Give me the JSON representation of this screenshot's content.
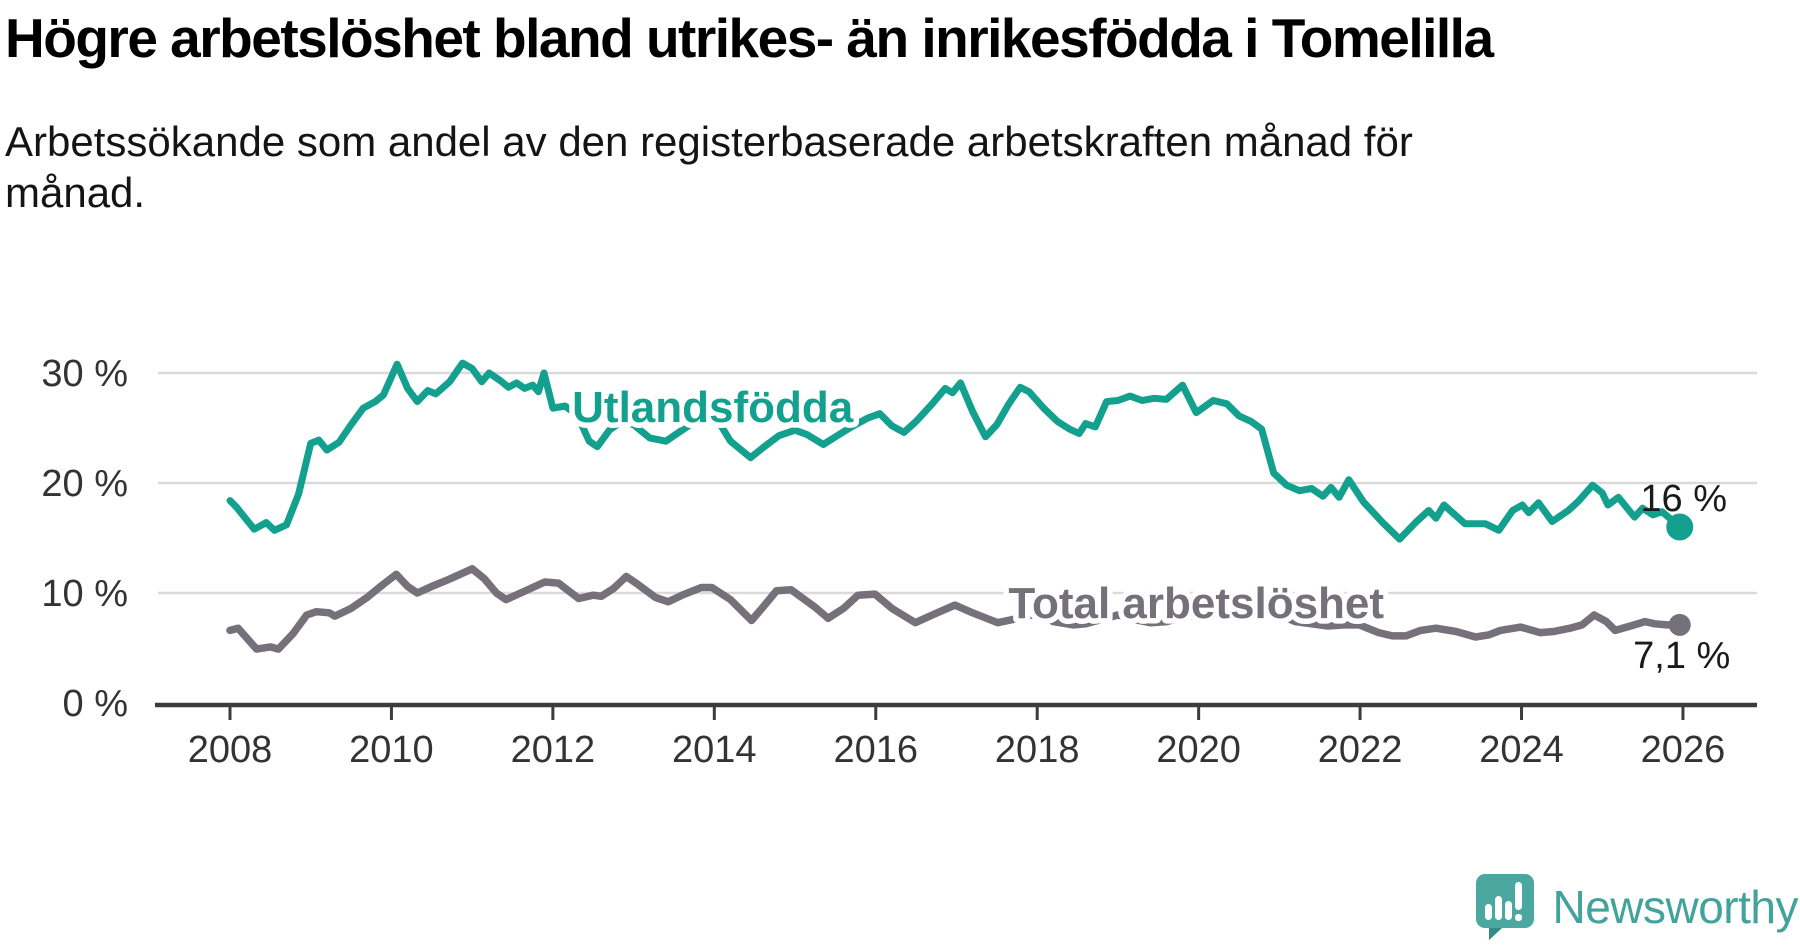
{
  "title": "Högre arbetslöshet bland utrikes- än inrikesfödda i Tomelilla",
  "subtitle": "Arbetssökande som andel av den registerbaserade arbetskraften månad för månad.",
  "branding": {
    "name": "Newsworthy",
    "icon": "speech-bubble-bar-chart-exclamation",
    "color": "#41a39b",
    "icon_color": "#4ba8a0"
  },
  "chart_data": {
    "type": "line",
    "title": "Högre arbetslöshet bland utrikes- än inrikesfödda i Tomelilla",
    "subtitle": "Arbetssökande som andel av den registerbaserade arbetskraften månad för månad.",
    "grid": "horizontal",
    "background": "#ffffff",
    "x_axis": {
      "min": 2007.6,
      "max": 2026.9,
      "ticks": [
        2008,
        2010,
        2012,
        2014,
        2016,
        2018,
        2020,
        2022,
        2024,
        2026
      ]
    },
    "y_axis": {
      "min": 0,
      "max": 33,
      "ticks": [
        0,
        10,
        20,
        30
      ],
      "labels": [
        "0 %",
        "10 %",
        "20 %",
        "30 %"
      ]
    },
    "colors": {
      "gridline": "#dadada",
      "axis": "#3c3c3c",
      "tick_text": "#333333",
      "value_label_text": "#1a1a1a"
    },
    "series": [
      {
        "name": "Utlandsfödda",
        "color": "#14a08e",
        "end_label": "16 %",
        "last_value": 16.0,
        "label_pos": {
          "x": 2013.98,
          "y": 26.9
        },
        "points": [
          [
            2008.0,
            18.4
          ],
          [
            2008.08,
            17.8
          ],
          [
            2008.3,
            15.8
          ],
          [
            2008.45,
            16.4
          ],
          [
            2008.55,
            15.7
          ],
          [
            2008.7,
            16.2
          ],
          [
            2008.85,
            19.0
          ],
          [
            2009.0,
            23.6
          ],
          [
            2009.1,
            23.9
          ],
          [
            2009.2,
            23.0
          ],
          [
            2009.35,
            23.7
          ],
          [
            2009.5,
            25.3
          ],
          [
            2009.65,
            26.8
          ],
          [
            2009.8,
            27.4
          ],
          [
            2009.9,
            28.0
          ],
          [
            2010.07,
            30.8
          ],
          [
            2010.2,
            28.6
          ],
          [
            2010.32,
            27.4
          ],
          [
            2010.45,
            28.4
          ],
          [
            2010.55,
            28.1
          ],
          [
            2010.72,
            29.2
          ],
          [
            2010.88,
            30.9
          ],
          [
            2011.0,
            30.4
          ],
          [
            2011.12,
            29.2
          ],
          [
            2011.21,
            30.0
          ],
          [
            2011.35,
            29.3
          ],
          [
            2011.45,
            28.7
          ],
          [
            2011.55,
            29.1
          ],
          [
            2011.65,
            28.6
          ],
          [
            2011.75,
            28.9
          ],
          [
            2011.82,
            28.3
          ],
          [
            2011.89,
            30.0
          ],
          [
            2012.0,
            26.8
          ],
          [
            2012.15,
            27.0
          ],
          [
            2012.3,
            26.2
          ],
          [
            2012.45,
            23.8
          ],
          [
            2012.55,
            23.3
          ],
          [
            2012.7,
            24.8
          ],
          [
            2012.85,
            25.6
          ],
          [
            2013.0,
            25.3
          ],
          [
            2013.2,
            24.1
          ],
          [
            2013.4,
            23.8
          ],
          [
            2013.6,
            24.8
          ],
          [
            2013.8,
            25.8
          ],
          [
            2014.0,
            26.2
          ],
          [
            2014.2,
            23.8
          ],
          [
            2014.45,
            22.3
          ],
          [
            2014.6,
            23.2
          ],
          [
            2014.8,
            24.3
          ],
          [
            2015.0,
            24.8
          ],
          [
            2015.15,
            24.4
          ],
          [
            2015.35,
            23.5
          ],
          [
            2015.5,
            24.2
          ],
          [
            2015.7,
            25.1
          ],
          [
            2015.9,
            25.9
          ],
          [
            2016.05,
            26.3
          ],
          [
            2016.2,
            25.2
          ],
          [
            2016.35,
            24.6
          ],
          [
            2016.5,
            25.6
          ],
          [
            2016.7,
            27.2
          ],
          [
            2016.86,
            28.6
          ],
          [
            2016.95,
            28.2
          ],
          [
            2017.05,
            29.1
          ],
          [
            2017.2,
            26.5
          ],
          [
            2017.36,
            24.2
          ],
          [
            2017.5,
            25.3
          ],
          [
            2017.65,
            27.2
          ],
          [
            2017.79,
            28.7
          ],
          [
            2017.9,
            28.3
          ],
          [
            2018.08,
            26.8
          ],
          [
            2018.25,
            25.6
          ],
          [
            2018.4,
            24.9
          ],
          [
            2018.52,
            24.5
          ],
          [
            2018.6,
            25.4
          ],
          [
            2018.72,
            25.1
          ],
          [
            2018.86,
            27.4
          ],
          [
            2019.0,
            27.5
          ],
          [
            2019.15,
            27.9
          ],
          [
            2019.3,
            27.5
          ],
          [
            2019.45,
            27.7
          ],
          [
            2019.6,
            27.6
          ],
          [
            2019.8,
            28.9
          ],
          [
            2019.97,
            26.4
          ],
          [
            2020.18,
            27.5
          ],
          [
            2020.35,
            27.2
          ],
          [
            2020.5,
            26.1
          ],
          [
            2020.65,
            25.6
          ],
          [
            2020.78,
            24.9
          ],
          [
            2020.93,
            20.9
          ],
          [
            2021.09,
            19.8
          ],
          [
            2021.25,
            19.3
          ],
          [
            2021.4,
            19.5
          ],
          [
            2021.54,
            18.8
          ],
          [
            2021.64,
            19.6
          ],
          [
            2021.74,
            18.7
          ],
          [
            2021.86,
            20.3
          ],
          [
            2022.04,
            18.3
          ],
          [
            2022.28,
            16.4
          ],
          [
            2022.49,
            14.9
          ],
          [
            2022.7,
            16.5
          ],
          [
            2022.85,
            17.5
          ],
          [
            2022.94,
            16.8
          ],
          [
            2023.04,
            18.0
          ],
          [
            2023.3,
            16.3
          ],
          [
            2023.55,
            16.3
          ],
          [
            2023.72,
            15.7
          ],
          [
            2023.89,
            17.5
          ],
          [
            2024.01,
            18.0
          ],
          [
            2024.09,
            17.3
          ],
          [
            2024.21,
            18.2
          ],
          [
            2024.38,
            16.5
          ],
          [
            2024.58,
            17.5
          ],
          [
            2024.7,
            18.3
          ],
          [
            2024.88,
            19.8
          ],
          [
            2025.0,
            19.1
          ],
          [
            2025.07,
            18.0
          ],
          [
            2025.2,
            18.7
          ],
          [
            2025.4,
            16.9
          ],
          [
            2025.5,
            17.7
          ],
          [
            2025.63,
            17.1
          ],
          [
            2025.74,
            17.4
          ],
          [
            2025.96,
            16.0
          ]
        ]
      },
      {
        "name": "Total arbetslöshet",
        "color": "#757079",
        "end_label": "7,1 %",
        "last_value": 7.1,
        "label_pos": {
          "x": 2019.97,
          "y": 9.1
        },
        "points": [
          [
            2008.0,
            6.6
          ],
          [
            2008.1,
            6.8
          ],
          [
            2008.33,
            4.9
          ],
          [
            2008.5,
            5.1
          ],
          [
            2008.6,
            4.9
          ],
          [
            2008.78,
            6.3
          ],
          [
            2008.95,
            8.0
          ],
          [
            2009.07,
            8.3
          ],
          [
            2009.23,
            8.2
          ],
          [
            2009.3,
            7.9
          ],
          [
            2009.5,
            8.6
          ],
          [
            2009.7,
            9.6
          ],
          [
            2009.9,
            10.8
          ],
          [
            2010.06,
            11.7
          ],
          [
            2010.2,
            10.6
          ],
          [
            2010.32,
            10.0
          ],
          [
            2010.5,
            10.6
          ],
          [
            2010.7,
            11.2
          ],
          [
            2010.85,
            11.7
          ],
          [
            2011.0,
            12.2
          ],
          [
            2011.15,
            11.3
          ],
          [
            2011.3,
            10.0
          ],
          [
            2011.42,
            9.4
          ],
          [
            2011.6,
            10.0
          ],
          [
            2011.75,
            10.5
          ],
          [
            2011.9,
            11.0
          ],
          [
            2012.07,
            10.9
          ],
          [
            2012.32,
            9.5
          ],
          [
            2012.5,
            9.8
          ],
          [
            2012.6,
            9.7
          ],
          [
            2012.75,
            10.4
          ],
          [
            2012.91,
            11.5
          ],
          [
            2013.05,
            10.8
          ],
          [
            2013.27,
            9.6
          ],
          [
            2013.43,
            9.2
          ],
          [
            2013.6,
            9.8
          ],
          [
            2013.84,
            10.5
          ],
          [
            2013.97,
            10.5
          ],
          [
            2014.2,
            9.4
          ],
          [
            2014.46,
            7.5
          ],
          [
            2014.6,
            8.7
          ],
          [
            2014.77,
            10.2
          ],
          [
            2014.95,
            10.3
          ],
          [
            2015.1,
            9.5
          ],
          [
            2015.25,
            8.7
          ],
          [
            2015.41,
            7.7
          ],
          [
            2015.6,
            8.6
          ],
          [
            2015.78,
            9.8
          ],
          [
            2015.99,
            9.9
          ],
          [
            2016.2,
            8.6
          ],
          [
            2016.49,
            7.3
          ],
          [
            2016.7,
            8.0
          ],
          [
            2016.98,
            8.9
          ],
          [
            2017.2,
            8.2
          ],
          [
            2017.51,
            7.3
          ],
          [
            2017.7,
            7.6
          ],
          [
            2018.0,
            8.1
          ],
          [
            2018.2,
            7.4
          ],
          [
            2018.45,
            7.1
          ],
          [
            2018.6,
            7.2
          ],
          [
            2018.8,
            7.6
          ],
          [
            2019.0,
            8.0
          ],
          [
            2019.2,
            7.6
          ],
          [
            2019.4,
            7.3
          ],
          [
            2019.6,
            7.4
          ],
          [
            2019.8,
            7.8
          ],
          [
            2020.0,
            8.1
          ],
          [
            2020.25,
            8.6
          ],
          [
            2020.45,
            8.8
          ],
          [
            2020.6,
            8.7
          ],
          [
            2020.8,
            8.4
          ],
          [
            2021.0,
            8.0
          ],
          [
            2021.2,
            7.4
          ],
          [
            2021.4,
            7.2
          ],
          [
            2021.6,
            7.0
          ],
          [
            2021.8,
            7.1
          ],
          [
            2021.99,
            7.1
          ],
          [
            2022.23,
            6.4
          ],
          [
            2022.4,
            6.1
          ],
          [
            2022.57,
            6.1
          ],
          [
            2022.75,
            6.6
          ],
          [
            2022.94,
            6.8
          ],
          [
            2023.19,
            6.5
          ],
          [
            2023.43,
            6.0
          ],
          [
            2023.6,
            6.2
          ],
          [
            2023.74,
            6.6
          ],
          [
            2023.99,
            6.9
          ],
          [
            2024.23,
            6.4
          ],
          [
            2024.4,
            6.5
          ],
          [
            2024.6,
            6.8
          ],
          [
            2024.75,
            7.1
          ],
          [
            2024.9,
            8.0
          ],
          [
            2025.05,
            7.4
          ],
          [
            2025.16,
            6.6
          ],
          [
            2025.35,
            7.0
          ],
          [
            2025.53,
            7.4
          ],
          [
            2025.65,
            7.2
          ],
          [
            2025.8,
            7.1
          ],
          [
            2025.96,
            7.1
          ]
        ]
      }
    ]
  }
}
